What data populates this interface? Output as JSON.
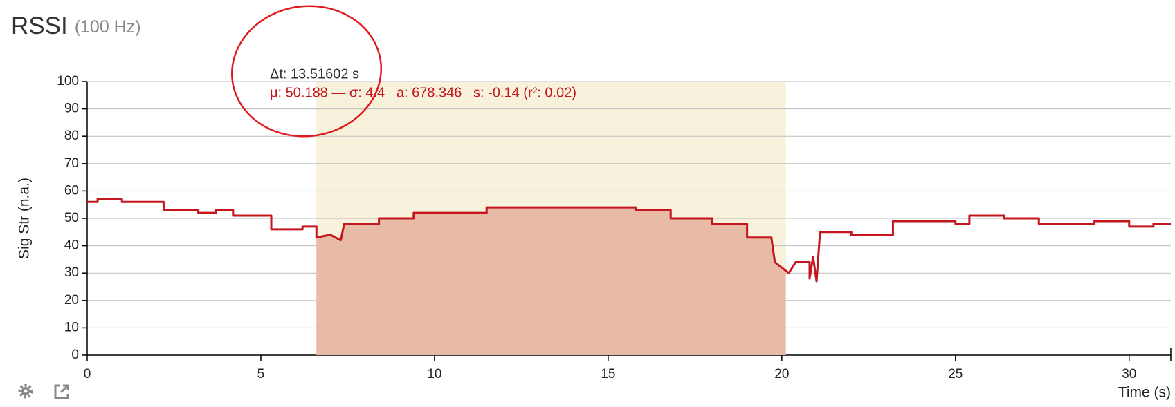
{
  "chart_data": {
    "type": "line",
    "title": "RSSI",
    "subtitle": "(100 Hz)",
    "x_label": "Time (s)",
    "y_label": "Sig Str (n.a.)",
    "annotations": [
      "Δt: 13.51602 s",
      "μ: 50.188 — σ: 4.4   a: 678.346   s: -0.14 (r²: 0.02)"
    ],
    "selection": [
      6.6,
      20.11602
    ],
    "color": "#c4161c",
    "x": [
      0,
      0.3,
      0.3,
      1,
      1,
      2.2,
      2.2,
      3.2,
      3.2,
      3.7,
      3.7,
      4.2,
      4.2,
      5.3,
      5.3,
      6.2,
      6.2,
      6.6,
      6.6,
      7.0,
      7.3,
      7.4,
      8.4,
      8.4,
      9.4,
      9.4,
      11.5,
      11.5,
      15.8,
      15.8,
      16.8,
      16.8,
      18,
      18,
      19,
      19,
      19.7,
      19.8,
      20.2,
      20.4,
      20.8,
      20.8,
      20.9,
      21.0,
      21.1,
      22,
      22,
      23.2,
      23.2,
      25,
      25,
      25.4,
      25.4,
      26.4,
      26.4,
      27.4,
      27.4,
      29,
      29,
      30,
      30,
      30.7,
      30.7,
      31.2
    ],
    "values": [
      56,
      56,
      57,
      57,
      56,
      56,
      53,
      53,
      52,
      52,
      53,
      53,
      51,
      51,
      46,
      46,
      47,
      47,
      43,
      44,
      42,
      48,
      48,
      50,
      50,
      52,
      52,
      54,
      54,
      53,
      53,
      50,
      50,
      48,
      48,
      43,
      43,
      34,
      30,
      34,
      34,
      28,
      36,
      27,
      45,
      45,
      44,
      44,
      49,
      49,
      48,
      48,
      51,
      51,
      50,
      50,
      48,
      48,
      49,
      49,
      47,
      47,
      48,
      48
    ],
    "xlim": [
      0,
      31.2
    ],
    "ylim": [
      0,
      100
    ],
    "xticks": [
      0,
      5,
      10,
      15,
      20,
      25,
      30
    ],
    "yticks": [
      0,
      10,
      20,
      30,
      40,
      50,
      60,
      70,
      80,
      90,
      100
    ],
    "grid": true
  }
}
